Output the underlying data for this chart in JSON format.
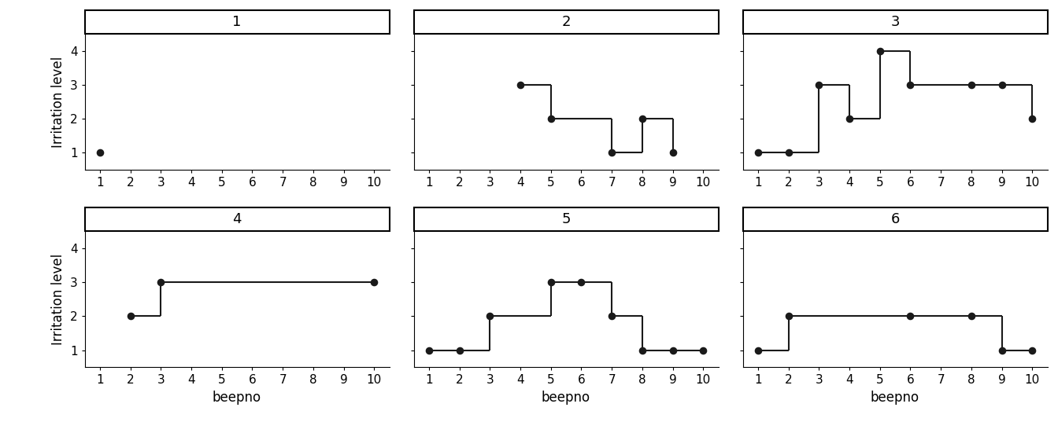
{
  "panels": [
    {
      "label": "1",
      "data": [
        [
          1,
          1
        ]
      ]
    },
    {
      "label": "2",
      "data": [
        [
          4,
          3
        ],
        [
          5,
          2
        ],
        [
          7,
          1
        ],
        [
          8,
          2
        ],
        [
          9,
          1
        ]
      ]
    },
    {
      "label": "3",
      "data": [
        [
          1,
          1
        ],
        [
          2,
          1
        ],
        [
          3,
          3
        ],
        [
          4,
          2
        ],
        [
          5,
          4
        ],
        [
          6,
          3
        ],
        [
          8,
          3
        ],
        [
          9,
          3
        ],
        [
          10,
          2
        ]
      ]
    },
    {
      "label": "4",
      "data": [
        [
          2,
          2
        ],
        [
          3,
          3
        ],
        [
          10,
          3
        ]
      ]
    },
    {
      "label": "5",
      "data": [
        [
          1,
          1
        ],
        [
          2,
          1
        ],
        [
          3,
          2
        ],
        [
          5,
          3
        ],
        [
          6,
          3
        ],
        [
          7,
          2
        ],
        [
          8,
          1
        ],
        [
          9,
          1
        ],
        [
          10,
          1
        ]
      ]
    },
    {
      "label": "6",
      "data": [
        [
          1,
          1
        ],
        [
          2,
          2
        ],
        [
          6,
          2
        ],
        [
          8,
          2
        ],
        [
          9,
          1
        ],
        [
          10,
          1
        ]
      ]
    }
  ],
  "xlabel": "beepno",
  "ylabel": "Irritation level",
  "xlim": [
    0.5,
    10.5
  ],
  "ylim": [
    0.5,
    4.5
  ],
  "yticks": [
    1,
    2,
    3,
    4
  ],
  "xticks": [
    1,
    2,
    3,
    4,
    5,
    6,
    7,
    8,
    9,
    10
  ],
  "figsize": [
    13.44,
    5.37
  ],
  "dpi": 100,
  "dot_color": "#1a1a1a",
  "line_color": "#1a1a1a",
  "dot_size": 35,
  "line_width": 1.5,
  "strip_facecolor": "white",
  "strip_edgecolor": "black",
  "strip_linewidth": 1.5,
  "title_fontsize": 13,
  "axis_fontsize": 12,
  "tick_fontsize": 11
}
